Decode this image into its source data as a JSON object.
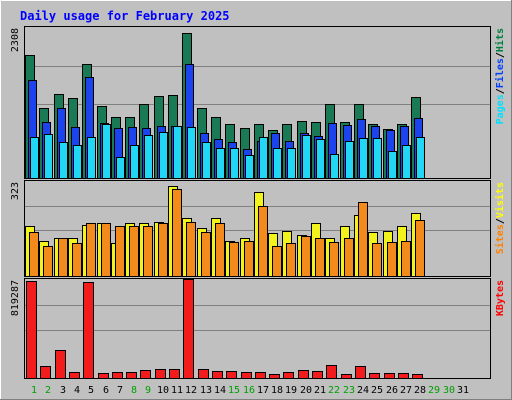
{
  "chart_data": {
    "type": "bar",
    "title": "Daily usage for February 2025",
    "days": [
      "1",
      "2",
      "3",
      "4",
      "5",
      "6",
      "7",
      "8",
      "9",
      "10",
      "11",
      "12",
      "13",
      "14",
      "15",
      "16",
      "17",
      "18",
      "19",
      "20",
      "21",
      "22",
      "23",
      "24",
      "25",
      "26",
      "27",
      "28",
      "29",
      "30",
      "31"
    ],
    "weekend_days": [
      "1",
      "2",
      "8",
      "9",
      "15",
      "16",
      "22",
      "23",
      "29",
      "30"
    ],
    "panels": [
      {
        "id": "hits-files-pages",
        "max_label": "2308",
        "ymax": 2308,
        "legend": [
          {
            "text": "Pages",
            "color": "#00e0ff"
          },
          {
            "text": "Files",
            "color": "#0040ff"
          },
          {
            "text": "Hits",
            "color": "#008040"
          }
        ],
        "series": [
          {
            "name": "Hits",
            "color": "#1a7a55",
            "values": [
              1910,
              1090,
              1300,
              1240,
              1760,
              1120,
              950,
              950,
              1150,
              1270,
              1280,
              2250,
              1090,
              950,
              840,
              770,
              840,
              750,
              840,
              880,
              860,
              1150,
              860,
              1140,
              840,
              760,
              840,
              1260
            ]
          },
          {
            "name": "Files",
            "color": "#1c44ee",
            "values": [
              1520,
              860,
              1080,
              790,
              1560,
              850,
              770,
              790,
              780,
              800,
              810,
              1760,
              700,
              610,
              560,
              450,
              580,
              690,
              580,
              690,
              650,
              850,
              820,
              920,
              810,
              740,
              800,
              930
            ]
          },
          {
            "name": "Pages",
            "color": "#22d6f6",
            "values": [
              640,
              680,
              550,
              510,
              640,
              830,
              330,
              510,
              660,
              720,
              810,
              790,
              550,
              460,
              460,
              360,
              640,
              470,
              460,
              660,
              610,
              370,
              580,
              620,
              620,
              420,
              510,
              630
            ]
          }
        ]
      },
      {
        "id": "visits-sites",
        "max_label": "323",
        "ymax": 323,
        "legend": [
          {
            "text": "Sites",
            "color": "#ff8000"
          },
          {
            "text": "Visits",
            "color": "#ffff00"
          }
        ],
        "series": [
          {
            "name": "Visits",
            "color": "#f2f21c",
            "values": [
              173,
              123,
              133,
              133,
              178,
              183,
              113,
              183,
              183,
              188,
              313,
              203,
              168,
              203,
              123,
              133,
              293,
              148,
              158,
              143,
              183,
              133,
              173,
              213,
              153,
              158,
              173,
              218
            ]
          },
          {
            "name": "Sites",
            "color": "#f28a1c",
            "values": [
              153,
              103,
              133,
              113,
              183,
              183,
              173,
              173,
              173,
              183,
              303,
              188,
              153,
              183,
              118,
              123,
              243,
              103,
              113,
              138,
              133,
              118,
              133,
              258,
              113,
              118,
              123,
              193
            ]
          }
        ]
      },
      {
        "id": "kbytes",
        "max_label": "819287",
        "ymax": 819287,
        "legend": [
          {
            "text": "KBytes",
            "color": "#ff0000"
          }
        ],
        "series": [
          {
            "name": "KBytes",
            "color": "#f21c1c",
            "values": [
              819287,
              102000,
              239000,
              52000,
              813000,
              43000,
              48000,
              54000,
              68000,
              80000,
              74000,
              837000,
              79000,
              60000,
              58000,
              49000,
              50000,
              34000,
              53000,
              70000,
              56000,
              108000,
              37000,
              104000,
              39000,
              44000,
              42000,
              37000
            ]
          }
        ]
      }
    ]
  }
}
